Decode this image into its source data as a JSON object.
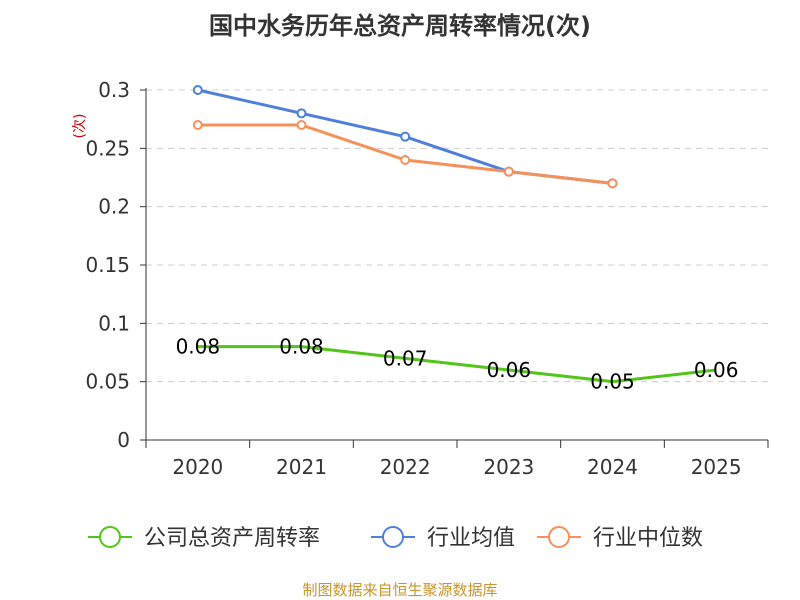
{
  "chart_data": {
    "type": "line",
    "title": "国中水务历年总资产周转率情况(次)",
    "ylabel": "(次)",
    "xlabel": "",
    "categories": [
      "2020",
      "2021",
      "2022",
      "2023",
      "2024",
      "2025"
    ],
    "ylim": [
      0,
      0.3
    ],
    "yticks": [
      "0",
      "0.05",
      "0.1",
      "0.15",
      "0.2",
      "0.25",
      "0.3"
    ],
    "grid": true,
    "legend_position": "bottom",
    "series": [
      {
        "name": "公司总资产周转率",
        "color": "#52c41a",
        "values": [
          0.08,
          0.08,
          0.07,
          0.06,
          0.05,
          0.06
        ],
        "labels": [
          "0.08",
          "0.08",
          "0.07",
          "0.06",
          "0.05",
          "0.06"
        ],
        "markers": false
      },
      {
        "name": "行业均值",
        "color": "#4f7fdb",
        "values": [
          0.3,
          0.28,
          0.26,
          0.23,
          0.22,
          null
        ],
        "markers": true
      },
      {
        "name": "行业中位数",
        "color": "#f5905a",
        "values": [
          0.27,
          0.27,
          0.24,
          0.23,
          0.22,
          null
        ],
        "markers": true
      }
    ]
  },
  "source_text": "制图数据来自恒生聚源数据库"
}
